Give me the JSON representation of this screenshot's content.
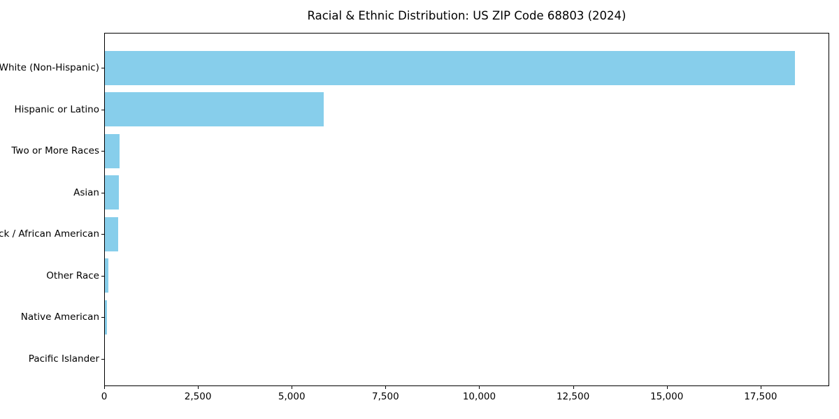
{
  "chart_data": {
    "type": "bar",
    "orientation": "horizontal",
    "title": "Racial & Ethnic Distribution: US ZIP Code 68803 (2024)",
    "categories": [
      "White (Non-Hispanic)",
      "Hispanic or Latino",
      "Two or More Races",
      "Asian",
      "Black / African American",
      "Other Race",
      "Native American",
      "Pacific Islander"
    ],
    "values": [
      18400,
      5830,
      400,
      375,
      350,
      90,
      55,
      0
    ],
    "xlabel": "",
    "ylabel": "",
    "xlim": [
      0,
      19330
    ],
    "xticks": [
      0,
      2500,
      5000,
      7500,
      10000,
      12500,
      15000,
      17500
    ],
    "xtick_labels": [
      "0",
      "2,500",
      "5,000",
      "7,500",
      "10,000",
      "12,500",
      "15,000",
      "17,500"
    ],
    "bar_color": "#87CEEB",
    "axis_color": "#000000",
    "grid": false,
    "legend": null
  }
}
